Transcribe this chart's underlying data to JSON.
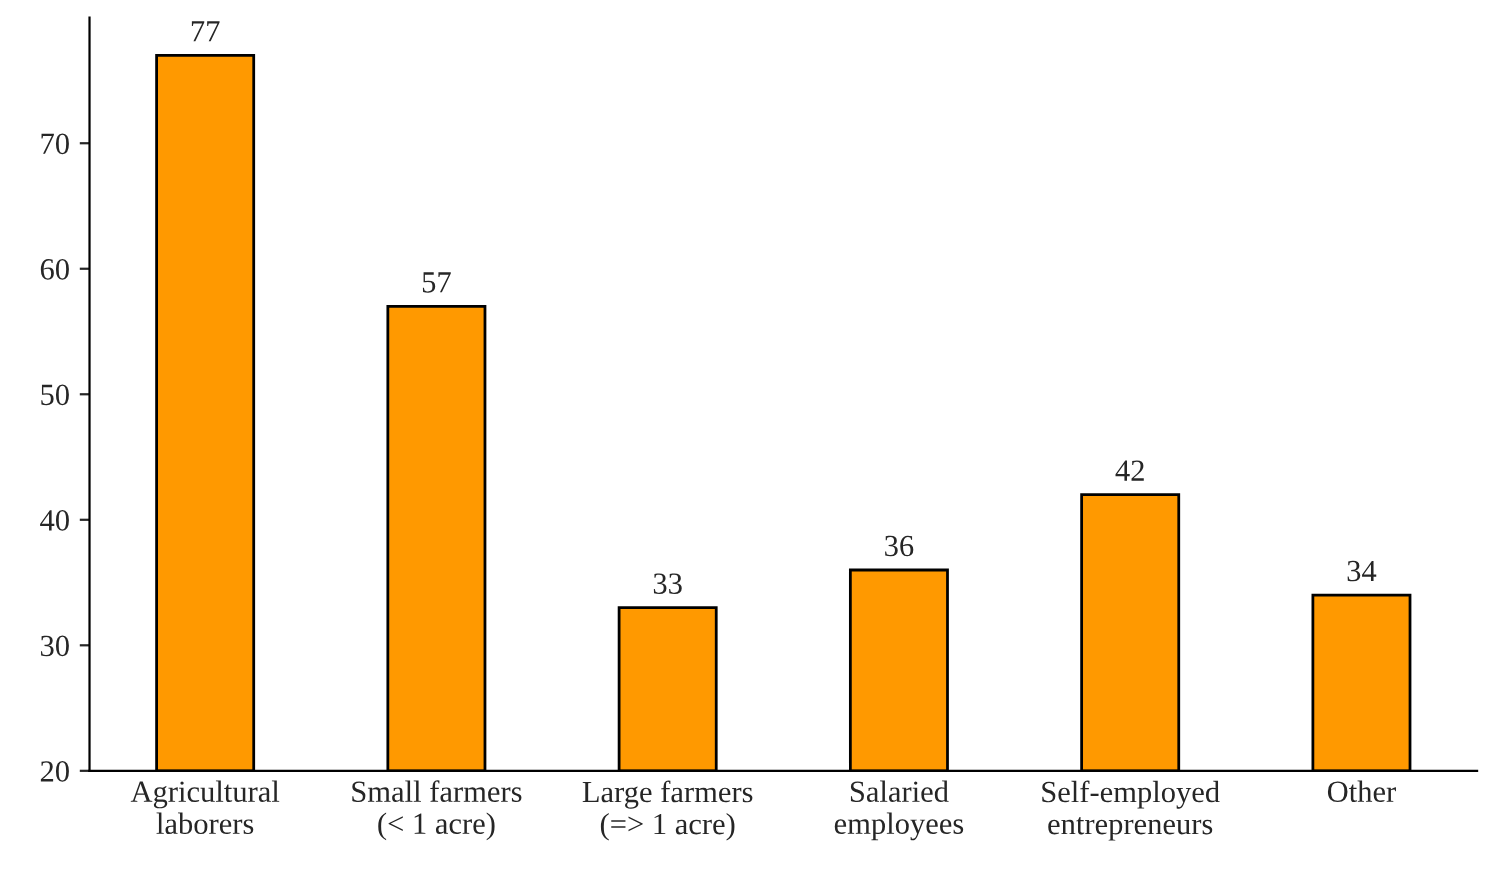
{
  "chart_data": {
    "type": "bar",
    "categories": [
      "Agricultural\nlaborers",
      "Small farmers\n(< 1 acre)",
      "Large farmers\n(=> 1 acre)",
      "Salaried\nemployees",
      "Self-employed\nentrepreneurs",
      "Other"
    ],
    "values": [
      77,
      57,
      33,
      36,
      42,
      34
    ],
    "color": "#ff9900",
    "ylim": [
      20,
      80
    ],
    "yticks": [
      20,
      30,
      40,
      50,
      60,
      70
    ],
    "data_labels": true,
    "grid": false,
    "legend": false
  }
}
